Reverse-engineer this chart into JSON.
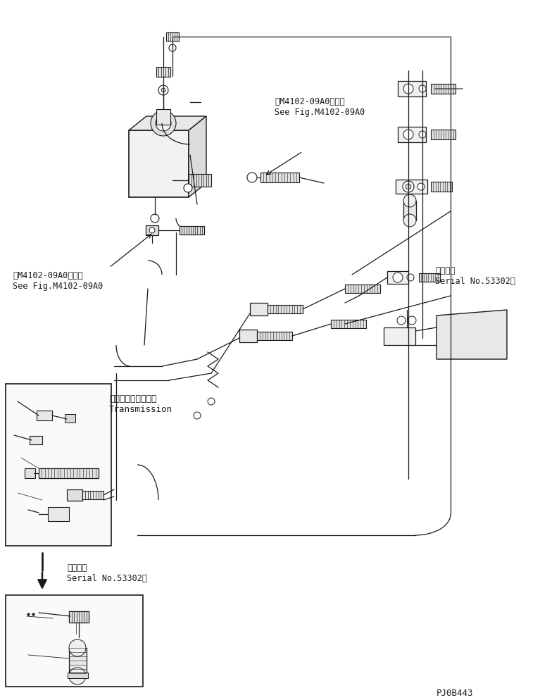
{
  "bg_color": "#ffffff",
  "line_color": "#1a1a1a",
  "lw": 0.9,
  "part_label": "PJ0B443",
  "ann1_text": "第M4102-09A0図参照\nSee Fig.M4102-09A0",
  "ann2_text": "第M4102-09A0図参照\nSee Fig.M4102-09A0",
  "ann3_text": "トランスミッション\nTransmission",
  "ann4_text": "適用号機\nSerial No.53302～",
  "ann5_text": "適用号機\nSerial No.53302～"
}
